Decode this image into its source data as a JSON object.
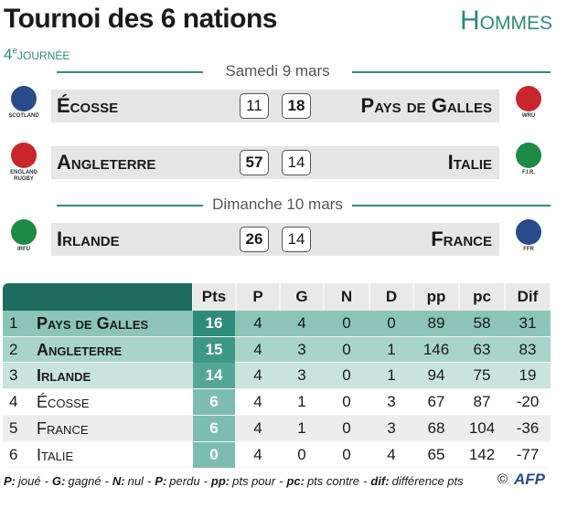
{
  "header": {
    "title": "Tournoi des 6 nations",
    "category": "Hommes",
    "round": {
      "number": "4",
      "suffix": "e",
      "label": "journée"
    }
  },
  "days": [
    {
      "date": "Samedi 9 mars",
      "matches": [
        {
          "home": "Écosse",
          "home_logo": "SCOTLAND",
          "home_score": 11,
          "away_score": 18,
          "away": "Pays de Galles",
          "away_logo": "WRU"
        },
        {
          "home": "Angleterre",
          "home_logo": "ENGLAND RUGBY",
          "home_score": 57,
          "away_score": 14,
          "away": "Italie",
          "away_logo": "F.I.R."
        }
      ]
    },
    {
      "date": "Dimanche 10 mars",
      "matches": [
        {
          "home": "Irlande",
          "home_logo": "IRFU",
          "home_score": 26,
          "away_score": 14,
          "away": "France",
          "away_logo": "FFR"
        }
      ]
    }
  ],
  "table": {
    "columns": [
      "Pts",
      "P",
      "G",
      "N",
      "D",
      "pp",
      "pc",
      "Dif"
    ],
    "rows": [
      {
        "rank": 1,
        "team": "Pays de Galles",
        "values": [
          16,
          4,
          4,
          0,
          0,
          89,
          58,
          31
        ]
      },
      {
        "rank": 2,
        "team": "Angleterre",
        "values": [
          15,
          4,
          3,
          0,
          1,
          146,
          63,
          83
        ]
      },
      {
        "rank": 3,
        "team": "Irlande",
        "values": [
          14,
          4,
          3,
          0,
          1,
          94,
          75,
          19
        ]
      },
      {
        "rank": 4,
        "team": "Écosse",
        "values": [
          6,
          4,
          1,
          0,
          3,
          67,
          87,
          -20
        ]
      },
      {
        "rank": 5,
        "team": "France",
        "values": [
          6,
          4,
          1,
          0,
          3,
          68,
          104,
          -36
        ]
      },
      {
        "rank": 6,
        "team": "Italie",
        "values": [
          0,
          4,
          0,
          0,
          4,
          65,
          142,
          -77
        ]
      }
    ]
  },
  "footer": {
    "separator": "-",
    "legend": [
      {
        "key": "P:",
        "text": "joué"
      },
      {
        "key": "G:",
        "text": "gagné"
      },
      {
        "key": "N:",
        "text": "nul"
      },
      {
        "key": "P:",
        "text": "perdu"
      },
      {
        "key": "pp:",
        "text": "pts pour"
      },
      {
        "key": "pc:",
        "text": "pts contre"
      },
      {
        "key": "dif:",
        "text": "différence pts"
      }
    ],
    "copyright": "©",
    "credit": "AFP"
  }
}
